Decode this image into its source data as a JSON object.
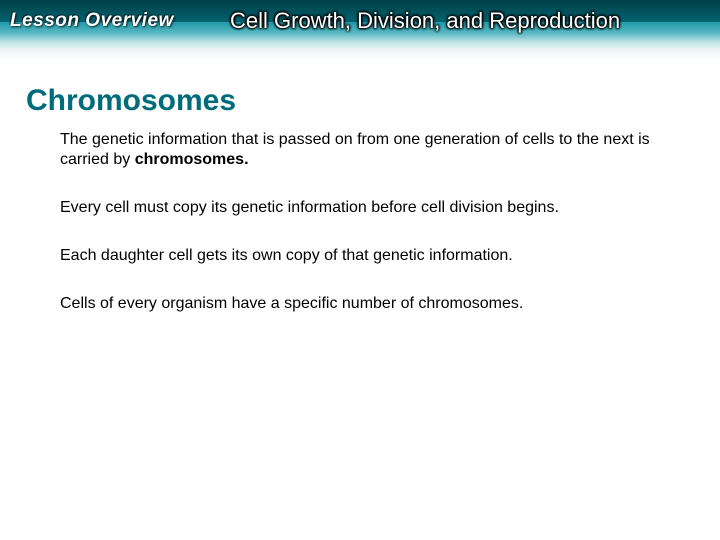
{
  "header": {
    "label": "Lesson Overview",
    "title": "Cell Growth, Division, and Reproduction",
    "band_gradient_colors": [
      "#006b7a",
      "#0b8ea0",
      "#58b8c2",
      "#bfe3e6",
      "#e9f4f5",
      "#ffffff"
    ],
    "dark_stripe_colors": [
      "#013f47",
      "#03636f"
    ],
    "label_color": "#ffffff",
    "title_color": "#ffffff"
  },
  "section": {
    "heading": "Chromosomes",
    "heading_color": "#006b7a",
    "heading_fontsize": 30
  },
  "paragraphs": [
    {
      "pre": "The genetic information that is passed on from one generation of cells to the next is carried by ",
      "bold": "chromosomes.",
      "post": ""
    },
    {
      "pre": "Every cell must copy its genetic information before cell division begins.",
      "bold": "",
      "post": ""
    },
    {
      "pre": "Each daughter cell gets its own copy of that genetic information.",
      "bold": "",
      "post": ""
    },
    {
      "pre": "Cells of every organism have a specific number of chromosomes.",
      "bold": "",
      "post": ""
    }
  ],
  "layout": {
    "slide_width": 720,
    "slide_height": 540,
    "body_fontsize": 16,
    "body_color": "#000000",
    "background": "#ffffff"
  }
}
